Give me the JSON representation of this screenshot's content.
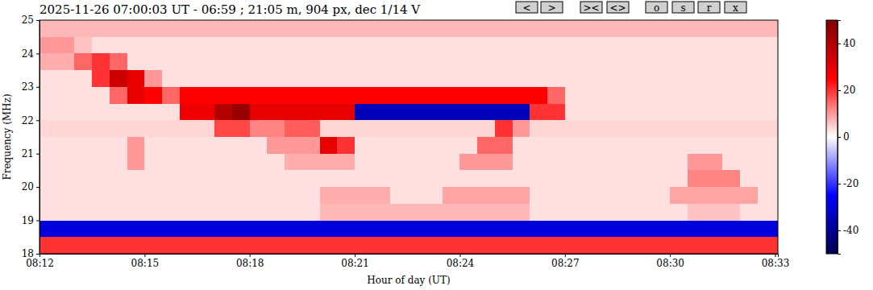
{
  "chart_data": {
    "type": "heatmap",
    "title": "2025-11-26 07:00:03 UT - 06:59 ; 21:05 m, 904 px, dec 1/14 V",
    "buttons": [
      "<",
      ">",
      "><",
      "<>",
      "o",
      "s",
      "r",
      "x"
    ],
    "x_label": "Hour of day (UT)",
    "y_label": "Frequency (MHz)",
    "xlim": [
      12,
      33.08
    ],
    "xticks": [
      {
        "value": 12,
        "label": "08:12"
      },
      {
        "value": 15,
        "label": "08:15"
      },
      {
        "value": 18,
        "label": "08:18"
      },
      {
        "value": 21,
        "label": "08:21"
      },
      {
        "value": 24,
        "label": "08:24"
      },
      {
        "value": 27,
        "label": "08:27"
      },
      {
        "value": 30,
        "label": "08:30"
      },
      {
        "value": 33,
        "label": "08:33"
      }
    ],
    "ylim": [
      18,
      25
    ],
    "yticks": [
      18,
      19,
      20,
      21,
      22,
      23,
      24,
      25
    ],
    "x_edges": [
      12,
      12.5,
      13,
      13.5,
      14,
      14.5,
      15,
      15.5,
      16,
      16.5,
      17,
      17.5,
      18,
      18.5,
      19,
      19.5,
      20,
      20.5,
      21,
      21.5,
      22,
      22.5,
      23,
      23.5,
      24,
      24.5,
      25,
      25.5,
      26,
      26.5,
      27,
      27.5,
      28,
      28.5,
      29,
      29.5,
      30,
      30.5,
      31,
      31.5,
      32,
      32.5,
      33.08
    ],
    "y_edges": [
      18,
      18.5,
      19,
      19.5,
      20,
      20.5,
      21,
      21.5,
      22,
      22.5,
      23,
      23.5,
      24,
      24.5,
      25
    ],
    "cells": [
      [
        20,
        20,
        20,
        20,
        20,
        20,
        20,
        20,
        20,
        20,
        20,
        20,
        20,
        20,
        20,
        20,
        20,
        20,
        20,
        20,
        20,
        20,
        20,
        20,
        20,
        20,
        20,
        20,
        20,
        20,
        20,
        20,
        20,
        20,
        20,
        20,
        20,
        20,
        20,
        20,
        20,
        20
      ],
      [
        -30,
        -30,
        -30,
        -30,
        -30,
        -30,
        -30,
        -30,
        -30,
        -30,
        -30,
        -30,
        -30,
        -30,
        -30,
        -30,
        -30,
        -30,
        -30,
        -30,
        -30,
        -30,
        -30,
        -30,
        -30,
        -30,
        -30,
        -30,
        -30,
        -30,
        -30,
        -30,
        -30,
        -30,
        -30,
        -30,
        -30,
        -30,
        -30,
        -30,
        -30,
        -30
      ],
      [
        3,
        3,
        3,
        3,
        3,
        3,
        3,
        3,
        3,
        3,
        3,
        3,
        3,
        3,
        3,
        3,
        7,
        7,
        7,
        7,
        7,
        7,
        7,
        7,
        7,
        7,
        7,
        7,
        3,
        3,
        3,
        3,
        3,
        3,
        3,
        3,
        3,
        6,
        6,
        6,
        3,
        3
      ],
      [
        3,
        3,
        3,
        3,
        3,
        3,
        3,
        3,
        3,
        3,
        3,
        3,
        3,
        3,
        3,
        3,
        8,
        8,
        8,
        8,
        3,
        3,
        3,
        9,
        9,
        9,
        9,
        9,
        3,
        3,
        3,
        3,
        3,
        3,
        3,
        3,
        9,
        9,
        9,
        9,
        9,
        3
      ],
      [
        3,
        3,
        3,
        3,
        3,
        3,
        3,
        3,
        3,
        3,
        3,
        3,
        3,
        3,
        3,
        3,
        3,
        3,
        3,
        3,
        3,
        3,
        3,
        3,
        3,
        3,
        3,
        3,
        3,
        3,
        3,
        3,
        3,
        3,
        3,
        3,
        3,
        12,
        12,
        12,
        3,
        3
      ],
      [
        3,
        3,
        3,
        3,
        3,
        10,
        3,
        3,
        3,
        3,
        3,
        3,
        3,
        3,
        8,
        8,
        8,
        8,
        3,
        3,
        3,
        3,
        3,
        3,
        10,
        10,
        10,
        3,
        3,
        3,
        3,
        3,
        3,
        3,
        3,
        3,
        3,
        10,
        10,
        3,
        3,
        3
      ],
      [
        3,
        3,
        3,
        3,
        3,
        10,
        3,
        3,
        3,
        3,
        3,
        3,
        3,
        10,
        10,
        10,
        30,
        20,
        3,
        3,
        3,
        3,
        3,
        3,
        3,
        15,
        15,
        3,
        3,
        3,
        3,
        3,
        3,
        3,
        3,
        3,
        3,
        3,
        3,
        3,
        3,
        3
      ],
      [
        4,
        4,
        4,
        4,
        4,
        4,
        4,
        4,
        4,
        4,
        18,
        18,
        12,
        12,
        16,
        16,
        4,
        4,
        4,
        4,
        4,
        4,
        4,
        4,
        4,
        4,
        20,
        10,
        4,
        4,
        4,
        4,
        4,
        4,
        4,
        4,
        4,
        4,
        4,
        4,
        4,
        4
      ],
      [
        3,
        3,
        3,
        3,
        3,
        3,
        3,
        3,
        28,
        28,
        40,
        45,
        30,
        30,
        30,
        30,
        30,
        30,
        -35,
        -35,
        -35,
        -35,
        -35,
        -35,
        -35,
        -35,
        -35,
        -35,
        20,
        20,
        3,
        3,
        3,
        3,
        3,
        3,
        3,
        3,
        3,
        3,
        3,
        3
      ],
      [
        3,
        3,
        3,
        3,
        15,
        30,
        25,
        15,
        25,
        25,
        25,
        25,
        25,
        25,
        25,
        25,
        25,
        25,
        25,
        25,
        25,
        25,
        25,
        25,
        25,
        25,
        25,
        25,
        25,
        15,
        3,
        3,
        3,
        3,
        3,
        3,
        3,
        3,
        3,
        3,
        3,
        3
      ],
      [
        3,
        3,
        3,
        20,
        35,
        30,
        10,
        3,
        3,
        3,
        3,
        3,
        3,
        3,
        3,
        3,
        3,
        3,
        3,
        3,
        3,
        3,
        3,
        3,
        3,
        3,
        3,
        3,
        3,
        3,
        3,
        3,
        3,
        3,
        3,
        3,
        3,
        3,
        3,
        3,
        3,
        3
      ],
      [
        8,
        8,
        15,
        20,
        15,
        3,
        3,
        3,
        3,
        3,
        3,
        3,
        3,
        3,
        3,
        3,
        3,
        3,
        3,
        3,
        3,
        3,
        3,
        3,
        3,
        3,
        3,
        3,
        3,
        3,
        3,
        3,
        3,
        3,
        3,
        3,
        3,
        3,
        3,
        3,
        3,
        3
      ],
      [
        10,
        10,
        6,
        3,
        3,
        3,
        3,
        3,
        3,
        3,
        3,
        3,
        3,
        3,
        3,
        3,
        3,
        3,
        3,
        3,
        3,
        3,
        3,
        3,
        3,
        3,
        3,
        3,
        3,
        3,
        3,
        3,
        3,
        3,
        3,
        3,
        3,
        3,
        3,
        3,
        3,
        3
      ],
      [
        7,
        7,
        7,
        7,
        7,
        7,
        7,
        7,
        7,
        7,
        7,
        7,
        7,
        7,
        7,
        7,
        7,
        7,
        7,
        7,
        7,
        7,
        7,
        7,
        7,
        7,
        7,
        7,
        7,
        7,
        7,
        7,
        7,
        7,
        7,
        7,
        7,
        7,
        7,
        7,
        7,
        7
      ]
    ],
    "colorbar": {
      "range": [
        -50,
        50
      ],
      "ticks": [
        -40,
        -20,
        0,
        20,
        40
      ]
    }
  }
}
